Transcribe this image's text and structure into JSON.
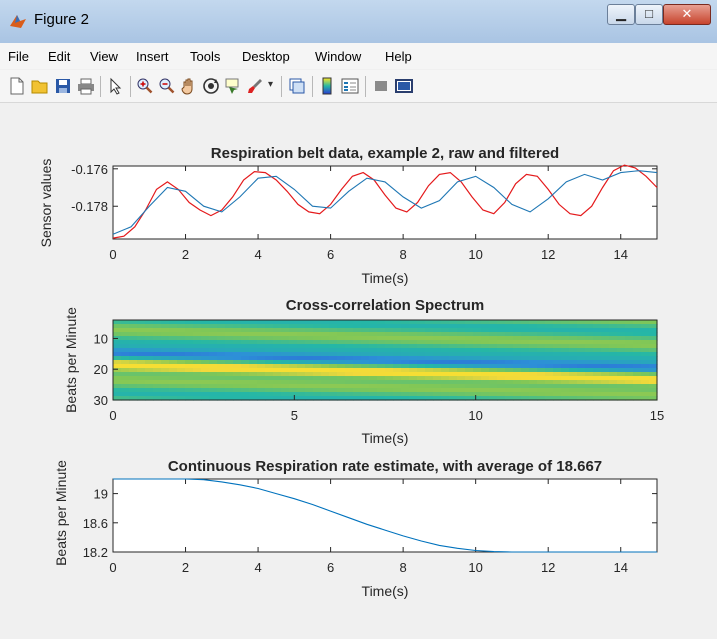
{
  "window": {
    "title": "Figure 2"
  },
  "menu": [
    "File",
    "Edit",
    "View",
    "Insert",
    "Tools",
    "Desktop",
    "Window",
    "Help"
  ],
  "toolbar": {
    "icons": [
      "new-figure-icon",
      "open-file-icon",
      "save-icon",
      "print-icon",
      "pointer-icon",
      "zoom-in-icon",
      "zoom-out-icon",
      "pan-hand-icon",
      "rotate-3d-icon",
      "data-cursor-icon",
      "brush-icon",
      "dropdown-arrow-icon",
      "link-plot-icon",
      "colorbar-icon",
      "legend-icon",
      "hide-plot-tools-icon",
      "show-plot-tools-icon"
    ]
  },
  "colors": {
    "raw": "#e41a1c",
    "filtered": "#1f77b4",
    "estimate": "#0072bd"
  },
  "chart_data": [
    {
      "type": "line",
      "title": "Respiration belt data, example 2, raw and filtered",
      "xlabel": "Time(s)",
      "ylabel": "Sensor values",
      "xlim": [
        0,
        15
      ],
      "ylim": [
        -0.17975,
        -0.17585
      ],
      "xticks": [
        0,
        2,
        4,
        6,
        8,
        10,
        12,
        14
      ],
      "yticks": [
        -0.176,
        -0.178
      ],
      "ytick_labels": [
        "-0.176",
        "-0.178"
      ],
      "series": [
        {
          "color": "#e41a1c",
          "x": [
            0,
            0.3,
            0.6,
            0.9,
            1.2,
            1.5,
            1.8,
            2.1,
            2.4,
            2.7,
            3.0,
            3.3,
            3.6,
            3.9,
            4.2,
            4.5,
            4.8,
            5.1,
            5.4,
            5.7,
            6.0,
            6.3,
            6.6,
            6.9,
            7.2,
            7.5,
            7.8,
            8.1,
            8.4,
            8.7,
            9.0,
            9.3,
            9.6,
            9.9,
            10.2,
            10.5,
            10.8,
            11.1,
            11.4,
            11.7,
            12.0,
            12.3,
            12.6,
            12.9,
            13.2,
            13.5,
            13.8,
            14.1,
            14.4,
            14.7,
            15.0
          ],
          "y": [
            -0.1797,
            -0.1796,
            -0.1791,
            -0.1782,
            -0.1771,
            -0.1767,
            -0.1771,
            -0.1778,
            -0.1782,
            -0.1785,
            -0.1782,
            -0.1775,
            -0.1766,
            -0.17615,
            -0.1762,
            -0.1766,
            -0.1772,
            -0.1779,
            -0.1783,
            -0.1784,
            -0.1779,
            -0.1771,
            -0.1764,
            -0.1762,
            -0.1766,
            -0.1774,
            -0.1781,
            -0.1783,
            -0.1778,
            -0.1769,
            -0.1763,
            -0.1762,
            -0.1767,
            -0.1775,
            -0.1782,
            -0.1784,
            -0.1778,
            -0.1768,
            -0.1763,
            -0.1764,
            -0.1771,
            -0.1779,
            -0.1784,
            -0.1785,
            -0.178,
            -0.177,
            -0.1761,
            -0.1758,
            -0.17595,
            -0.1764,
            -0.177
          ]
        },
        {
          "color": "#1f77b4",
          "x": [
            0,
            0.5,
            1.0,
            1.5,
            2.0,
            2.5,
            3.0,
            3.5,
            4.0,
            4.5,
            5.0,
            5.5,
            6.0,
            6.5,
            7.0,
            7.5,
            8.0,
            8.5,
            9.0,
            9.5,
            10.0,
            10.5,
            11.0,
            11.5,
            12.0,
            12.5,
            13.0,
            13.5,
            14.0,
            14.5,
            15.0
          ],
          "y": [
            -0.1795,
            -0.1791,
            -0.178,
            -0.177,
            -0.1772,
            -0.178,
            -0.1783,
            -0.1775,
            -0.1765,
            -0.1764,
            -0.1771,
            -0.178,
            -0.1781,
            -0.1772,
            -0.1765,
            -0.1767,
            -0.1775,
            -0.1781,
            -0.1777,
            -0.1767,
            -0.1764,
            -0.177,
            -0.1779,
            -0.1783,
            -0.1776,
            -0.1767,
            -0.1763,
            -0.1766,
            -0.1762,
            -0.1761,
            -0.1762
          ]
        }
      ]
    },
    {
      "type": "heatmap",
      "title": "Cross-correlation Spectrum",
      "xlabel": "Time(s)",
      "ylabel": "Beats per Minute",
      "xlim": [
        0,
        15
      ],
      "ylim": [
        4,
        30
      ],
      "xticks": [
        0,
        5,
        10,
        15
      ],
      "yticks": [
        10,
        20,
        30
      ],
      "colormap": [
        "#2a3bd3",
        "#2d8fd8",
        "#25b7a6",
        "#80c757",
        "#f2d93b",
        "#fde725"
      ]
    },
    {
      "type": "line",
      "title": "Continuous Respiration rate estimate, with average of 18.667",
      "xlabel": "Time(s)",
      "ylabel": "Beats per Minute",
      "xlim": [
        0,
        15
      ],
      "ylim": [
        18.2,
        19.2
      ],
      "xticks": [
        0,
        2,
        4,
        6,
        8,
        10,
        12,
        14
      ],
      "yticks": [
        19,
        18.6,
        18.2
      ],
      "ytick_labels": [
        "19",
        "18.6",
        "18.2"
      ],
      "series": [
        {
          "color": "#0072bd",
          "x": [
            0,
            1,
            2,
            2.5,
            3,
            3.5,
            4,
            4.5,
            5,
            5.5,
            6,
            6.5,
            7,
            7.5,
            8,
            8.5,
            9,
            9.5,
            10,
            10.5,
            11,
            11.5,
            12,
            13,
            14,
            15
          ],
          "y": [
            19.2,
            19.2,
            19.2,
            19.19,
            19.16,
            19.12,
            19.07,
            19.0,
            18.93,
            18.85,
            18.76,
            18.67,
            18.58,
            18.5,
            18.42,
            18.35,
            18.29,
            18.25,
            18.22,
            18.205,
            18.2,
            18.2,
            18.2,
            18.2,
            18.2,
            18.2
          ]
        }
      ]
    }
  ]
}
